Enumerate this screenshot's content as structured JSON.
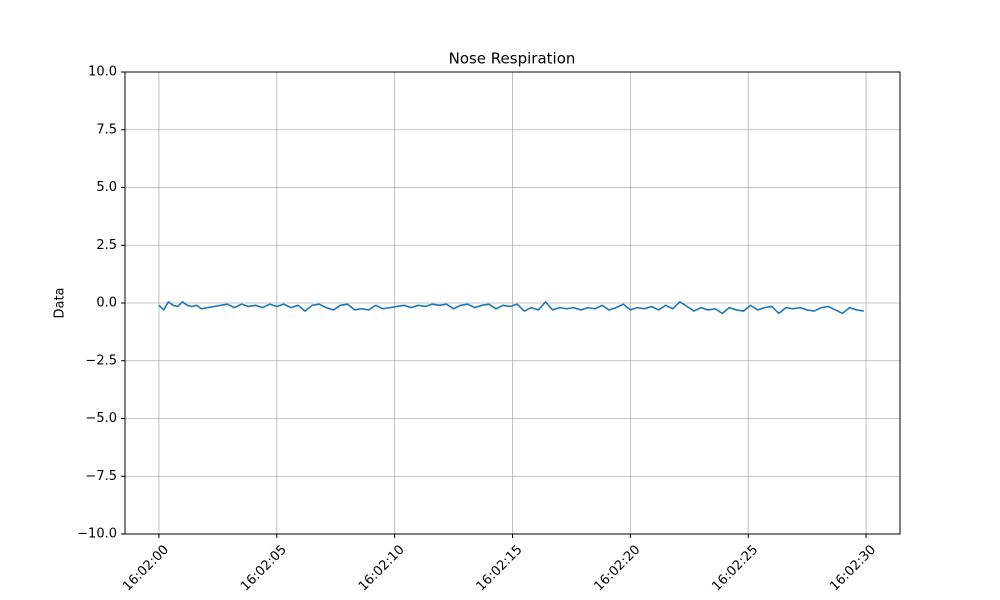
{
  "chart_data": {
    "type": "line",
    "title": "Nose Respiration",
    "y_label": "Data",
    "x": [
      0,
      0.2,
      0.4,
      0.6,
      0.8,
      1.0,
      1.2,
      1.4,
      1.6,
      1.8,
      2.9,
      3.2,
      3.5,
      3.8,
      4.1,
      4.4,
      4.7,
      5.0,
      5.3,
      5.6,
      5.9,
      6.2,
      6.5,
      6.8,
      7.1,
      7.4,
      7.7,
      8.0,
      8.3,
      8.6,
      8.9,
      9.2,
      9.5,
      9.8,
      10.1,
      10.4,
      10.7,
      11.0,
      11.3,
      11.6,
      11.9,
      12.2,
      12.5,
      12.8,
      13.1,
      13.4,
      13.7,
      14.0,
      14.3,
      14.6,
      14.9,
      15.2,
      15.5,
      15.8,
      16.1,
      16.4,
      16.7,
      17.0,
      17.3,
      17.6,
      17.9,
      18.2,
      18.5,
      18.8,
      19.1,
      19.4,
      19.7,
      20.0,
      20.3,
      20.6,
      20.9,
      21.2,
      21.5,
      21.8,
      22.1,
      22.4,
      22.7,
      23.0,
      23.3,
      23.6,
      23.9,
      24.2,
      24.5,
      24.8,
      25.1,
      25.4,
      25.7,
      26.0,
      26.3,
      26.6,
      26.9,
      27.2,
      27.5,
      27.8,
      28.1,
      28.4,
      28.7,
      29.0,
      29.3,
      29.6,
      29.9
    ],
    "series": [
      {
        "color": "#1f77b4",
        "values": [
          -0.1,
          -0.3,
          0.05,
          -0.1,
          -0.15,
          0.05,
          -0.1,
          -0.15,
          -0.1,
          -0.25,
          -0.05,
          -0.2,
          -0.05,
          -0.15,
          -0.1,
          -0.2,
          -0.05,
          -0.15,
          -0.05,
          -0.2,
          -0.1,
          -0.35,
          -0.1,
          -0.05,
          -0.2,
          -0.3,
          -0.1,
          -0.05,
          -0.3,
          -0.25,
          -0.3,
          -0.1,
          -0.25,
          -0.2,
          -0.15,
          -0.1,
          -0.2,
          -0.1,
          -0.15,
          -0.05,
          -0.1,
          -0.05,
          -0.25,
          -0.1,
          -0.05,
          -0.2,
          -0.1,
          -0.05,
          -0.25,
          -0.1,
          -0.15,
          -0.05,
          -0.35,
          -0.2,
          -0.3,
          0.05,
          -0.3,
          -0.2,
          -0.25,
          -0.2,
          -0.3,
          -0.2,
          -0.25,
          -0.1,
          -0.3,
          -0.2,
          -0.05,
          -0.3,
          -0.2,
          -0.25,
          -0.15,
          -0.3,
          -0.1,
          -0.25,
          0.05,
          -0.15,
          -0.35,
          -0.2,
          -0.3,
          -0.25,
          -0.45,
          -0.2,
          -0.3,
          -0.35,
          -0.1,
          -0.3,
          -0.2,
          -0.15,
          -0.45,
          -0.2,
          -0.25,
          -0.2,
          -0.3,
          -0.35,
          -0.2,
          -0.15,
          -0.3,
          -0.45,
          -0.2,
          -0.3,
          -0.35
        ]
      }
    ],
    "xlim": [
      -1.44,
      31.44
    ],
    "xticks": [
      {
        "value": 0,
        "label": "16:02:00"
      },
      {
        "value": 5,
        "label": "16:02:05"
      },
      {
        "value": 10,
        "label": "16:02:10"
      },
      {
        "value": 15,
        "label": "16:02:15"
      },
      {
        "value": 20,
        "label": "16:02:20"
      },
      {
        "value": 25,
        "label": "16:02:25"
      },
      {
        "value": 30,
        "label": "16:02:30"
      }
    ],
    "ylim": [
      -10,
      10
    ],
    "yticks": [
      {
        "value": -10,
        "label": "−10.0"
      },
      {
        "value": -7.5,
        "label": "−7.5"
      },
      {
        "value": -5,
        "label": "−5.0"
      },
      {
        "value": -2.5,
        "label": "−2.5"
      },
      {
        "value": 0,
        "label": "0.0"
      },
      {
        "value": 2.5,
        "label": "2.5"
      },
      {
        "value": 5,
        "label": "5.0"
      },
      {
        "value": 7.5,
        "label": "7.5"
      },
      {
        "value": 10,
        "label": "10.0"
      }
    ],
    "grid": true
  }
}
